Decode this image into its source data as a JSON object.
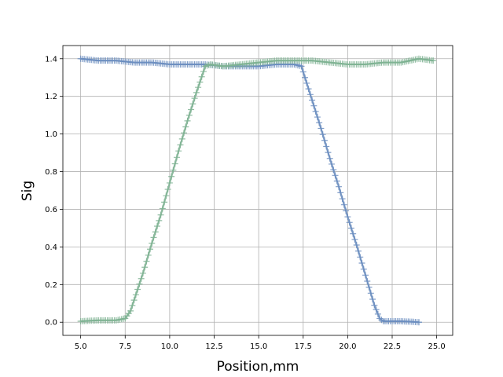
{
  "chart_data": {
    "type": "line",
    "xlabel": "Position,mm",
    "ylabel": "Sig",
    "xlim": [
      4.0,
      25.9
    ],
    "ylim": [
      -0.07,
      1.47
    ],
    "x_ticks": [
      5.0,
      7.5,
      10.0,
      12.5,
      15.0,
      17.5,
      20.0,
      22.5,
      25.0
    ],
    "x_tick_labels": [
      "5.0",
      "7.5",
      "10.0",
      "12.5",
      "15.0",
      "17.5",
      "20.0",
      "22.5",
      "25.0"
    ],
    "y_ticks": [
      0.0,
      0.2,
      0.4,
      0.6,
      0.8,
      1.0,
      1.2,
      1.4
    ],
    "y_tick_labels": [
      "0.0",
      "0.2",
      "0.4",
      "0.6",
      "0.8",
      "1.0",
      "1.2",
      "1.4"
    ],
    "grid": true,
    "marker": "+",
    "series": [
      {
        "color": "#6c8ebf",
        "x": [
          5.0,
          6.0,
          7.0,
          8.0,
          9.0,
          10.0,
          11.0,
          12.0,
          13.0,
          14.0,
          15.0,
          16.0,
          17.0,
          17.4,
          17.8,
          18.5,
          19.0,
          19.5,
          20.0,
          20.5,
          21.0,
          21.5,
          21.8,
          22.0,
          22.5,
          23.0,
          23.5,
          24.0
        ],
        "y": [
          1.4,
          1.39,
          1.39,
          1.38,
          1.38,
          1.37,
          1.37,
          1.37,
          1.36,
          1.36,
          1.36,
          1.37,
          1.37,
          1.36,
          1.24,
          1.03,
          0.87,
          0.72,
          0.56,
          0.41,
          0.25,
          0.09,
          0.02,
          0.005,
          0.005,
          0.005,
          0.003,
          0.0
        ]
      },
      {
        "color": "#7fb393",
        "x": [
          5.0,
          6.0,
          7.0,
          7.5,
          7.8,
          8.5,
          9.0,
          9.5,
          10.0,
          10.5,
          11.0,
          11.5,
          12.0,
          12.3,
          13.0,
          14.0,
          15.0,
          16.0,
          17.0,
          18.0,
          19.0,
          20.0,
          21.0,
          22.0,
          23.0,
          24.0,
          24.8
        ],
        "y": [
          0.005,
          0.01,
          0.01,
          0.02,
          0.06,
          0.26,
          0.42,
          0.57,
          0.74,
          0.91,
          1.07,
          1.22,
          1.36,
          1.37,
          1.36,
          1.37,
          1.38,
          1.39,
          1.39,
          1.39,
          1.38,
          1.37,
          1.37,
          1.38,
          1.38,
          1.4,
          1.39
        ]
      }
    ]
  }
}
